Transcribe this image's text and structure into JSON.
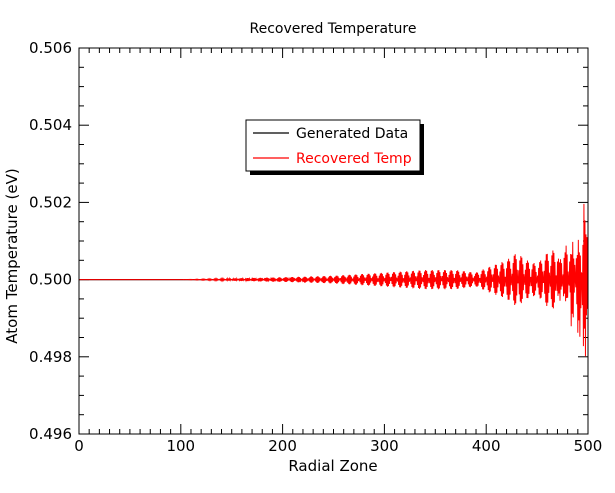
{
  "chart_data": {
    "type": "line",
    "title": "Recovered Temperature",
    "xlabel": "Radial Zone",
    "ylabel": "Atom Temperature (eV)",
    "xlim": [
      0,
      500
    ],
    "ylim": [
      0.496,
      0.506
    ],
    "xticks": [
      0,
      100,
      200,
      300,
      400,
      500
    ],
    "yticks": [
      0.496,
      0.498,
      0.5,
      0.502,
      0.504,
      0.506
    ],
    "xtick_labels": [
      "0",
      "100",
      "200",
      "300",
      "400",
      "500"
    ],
    "ytick_labels": [
      "0.496",
      "0.498",
      "0.500",
      "0.502",
      "0.504",
      "0.506"
    ],
    "x_minor_per_major": 10,
    "y_minor_per_major": 4,
    "grid": false,
    "legend_position": "upper-center",
    "series": [
      {
        "name": "Generated Data",
        "color": "#000000",
        "description": "constant",
        "points": [
          [
            0,
            0.5
          ],
          [
            500,
            0.5
          ]
        ]
      },
      {
        "name": "Recovered Temp",
        "color": "#ff0000",
        "envelope": [
          [
            0,
            0.0
          ],
          [
            100,
            0.0
          ],
          [
            150,
            3e-05
          ],
          [
            200,
            6e-05
          ],
          [
            250,
            0.0001
          ],
          [
            300,
            0.00018
          ],
          [
            340,
            0.00025
          ],
          [
            370,
            0.00025
          ],
          [
            390,
            0.00018
          ],
          [
            400,
            0.0003
          ],
          [
            410,
            0.0004
          ],
          [
            420,
            0.0005
          ],
          [
            430,
            0.0007
          ],
          [
            440,
            0.0005
          ],
          [
            450,
            0.0004
          ],
          [
            460,
            0.0007
          ],
          [
            470,
            0.0008
          ],
          [
            480,
            0.0012
          ],
          [
            490,
            0.0017
          ],
          [
            495,
            0.0025
          ],
          [
            500,
            0.004
          ]
        ]
      }
    ]
  }
}
